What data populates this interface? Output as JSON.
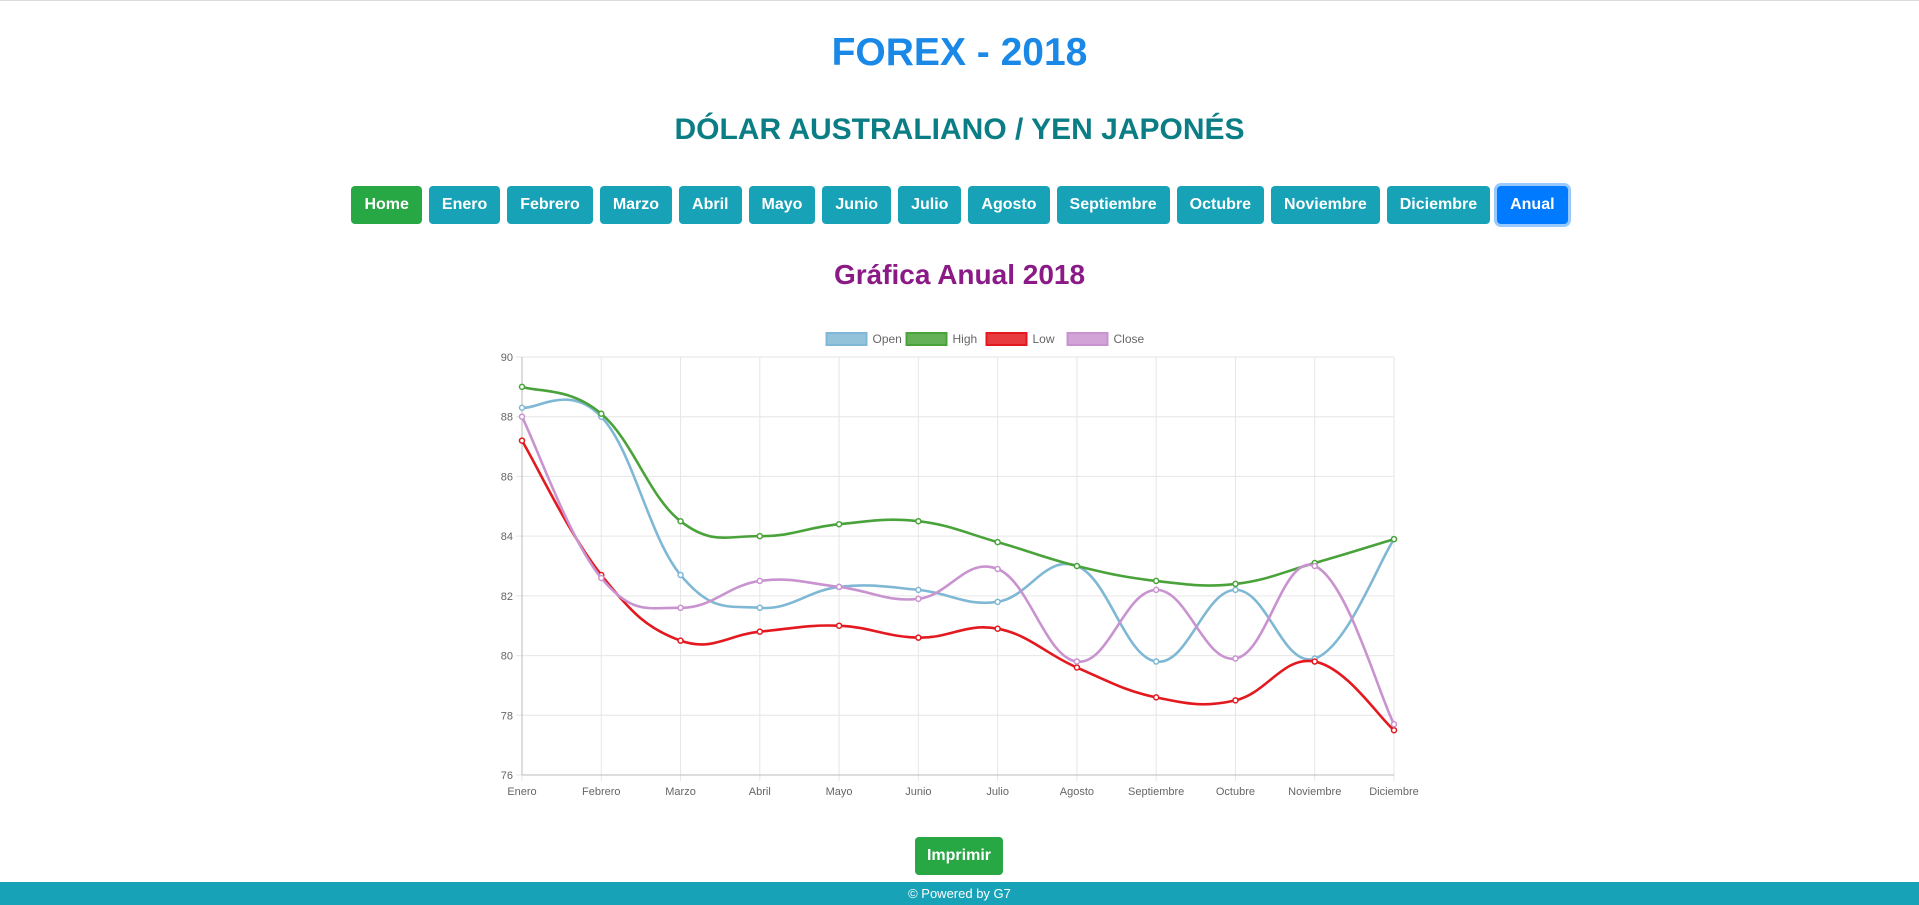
{
  "header": {
    "title": "FOREX - 2018",
    "subtitle": "DÓLAR AUSTRALIANO / YEN JAPONÉS"
  },
  "nav": {
    "items": [
      "Home",
      "Enero",
      "Febrero",
      "Marzo",
      "Abril",
      "Mayo",
      "Junio",
      "Julio",
      "Agosto",
      "Septiembre",
      "Octubre",
      "Noviembre",
      "Diciembre",
      "Anual"
    ],
    "active": "Anual"
  },
  "chart_title": "Gráfica Anual 2018",
  "print_label": "Imprimir",
  "footer": "© Powered by G7",
  "colors": {
    "Open": "#7fb8d4",
    "High": "#4aa33a",
    "Low": "#e3191f",
    "Close": "#c993d0"
  },
  "chart_data": {
    "type": "line",
    "categories": [
      "Enero",
      "Febrero",
      "Marzo",
      "Abril",
      "Mayo",
      "Junio",
      "Julio",
      "Agosto",
      "Septiembre",
      "Octubre",
      "Noviembre",
      "Diciembre"
    ],
    "series": [
      {
        "name": "Open",
        "values": [
          88.3,
          88.0,
          82.7,
          81.6,
          82.3,
          82.2,
          81.8,
          83.0,
          79.8,
          82.2,
          79.9,
          83.9
        ]
      },
      {
        "name": "High",
        "values": [
          89.0,
          88.1,
          84.5,
          84.0,
          84.4,
          84.5,
          83.8,
          83.0,
          82.5,
          82.4,
          83.1,
          83.9
        ]
      },
      {
        "name": "Low",
        "values": [
          87.2,
          82.7,
          80.5,
          80.8,
          81.0,
          80.6,
          80.9,
          79.6,
          78.6,
          78.5,
          79.8,
          77.5
        ]
      },
      {
        "name": "Close",
        "values": [
          88.0,
          82.6,
          81.6,
          82.5,
          82.3,
          81.9,
          82.9,
          79.8,
          82.2,
          79.9,
          83.0,
          77.7
        ]
      }
    ],
    "ylim": [
      76,
      90
    ],
    "yticks": [
      76,
      78,
      80,
      82,
      84,
      86,
      88,
      90
    ],
    "grid": true,
    "legend": "top"
  }
}
